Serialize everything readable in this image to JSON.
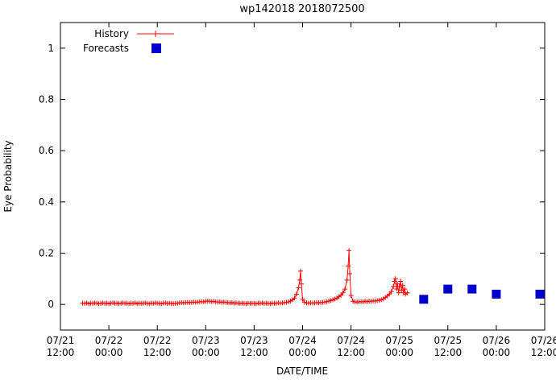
{
  "chart_data": {
    "type": "line",
    "title": "wp142018 2018072500",
    "xlabel": "DATE/TIME",
    "ylabel": "Eye Probability",
    "x_unit": "hours since 07/21 12:00",
    "xlim": [
      0,
      120
    ],
    "ylim": [
      -0.1,
      1.1
    ],
    "grid": false,
    "frame_color": "#000000",
    "x_ticks": [
      {
        "t": 0,
        "date": "07/21",
        "time": "12:00"
      },
      {
        "t": 12,
        "date": "07/22",
        "time": "00:00"
      },
      {
        "t": 24,
        "date": "07/22",
        "time": "12:00"
      },
      {
        "t": 36,
        "date": "07/23",
        "time": "00:00"
      },
      {
        "t": 48,
        "date": "07/23",
        "time": "12:00"
      },
      {
        "t": 60,
        "date": "07/24",
        "time": "00:00"
      },
      {
        "t": 72,
        "date": "07/24",
        "time": "12:00"
      },
      {
        "t": 84,
        "date": "07/25",
        "time": "00:00"
      },
      {
        "t": 96,
        "date": "07/25",
        "time": "12:00"
      },
      {
        "t": 108,
        "date": "07/26",
        "time": "00:00"
      },
      {
        "t": 120,
        "date": "07/26",
        "time": "12:00"
      }
    ],
    "y_ticks": [
      {
        "v": 0,
        "label": "0"
      },
      {
        "v": 0.2,
        "label": "0.2"
      },
      {
        "v": 0.4,
        "label": "0.4"
      },
      {
        "v": 0.6,
        "label": "0.6"
      },
      {
        "v": 0.8,
        "label": "0.8"
      },
      {
        "v": 1,
        "label": "1"
      }
    ],
    "legend": {
      "position": "top-left",
      "entries": [
        {
          "label": "History",
          "type": "line-plus",
          "color": "#ff0000"
        },
        {
          "label": "Forecasts",
          "type": "square",
          "color": "#0000cc"
        }
      ]
    },
    "series": [
      {
        "name": "History",
        "style": "linespoints",
        "marker": "plus",
        "color": "#ff0000",
        "points": [
          [
            5.5,
            0.005
          ],
          [
            6,
            0.004
          ],
          [
            6.5,
            0.006
          ],
          [
            7,
            0.003
          ],
          [
            7.5,
            0.005
          ],
          [
            8,
            0.004
          ],
          [
            8.5,
            0.006
          ],
          [
            9,
            0.005
          ],
          [
            9.5,
            0.003
          ],
          [
            10,
            0.004
          ],
          [
            10.5,
            0.006
          ],
          [
            11,
            0.004
          ],
          [
            11.5,
            0.005
          ],
          [
            12,
            0.003
          ],
          [
            12.5,
            0.005
          ],
          [
            13,
            0.006
          ],
          [
            13.5,
            0.004
          ],
          [
            14,
            0.005
          ],
          [
            14.5,
            0.003
          ],
          [
            15,
            0.004
          ],
          [
            15.5,
            0.006
          ],
          [
            16,
            0.005
          ],
          [
            16.5,
            0.004
          ],
          [
            17,
            0.003
          ],
          [
            17.5,
            0.005
          ],
          [
            18,
            0.004
          ],
          [
            18.5,
            0.006
          ],
          [
            19,
            0.003
          ],
          [
            19.5,
            0.005
          ],
          [
            20,
            0.004
          ],
          [
            20.5,
            0.005
          ],
          [
            21,
            0.006
          ],
          [
            21.5,
            0.004
          ],
          [
            22,
            0.003
          ],
          [
            22.5,
            0.005
          ],
          [
            23,
            0.004
          ],
          [
            23.5,
            0.006
          ],
          [
            24,
            0.005
          ],
          [
            24.5,
            0.004
          ],
          [
            25,
            0.003
          ],
          [
            25.5,
            0.005
          ],
          [
            26,
            0.006
          ],
          [
            26.5,
            0.004
          ],
          [
            27,
            0.005
          ],
          [
            27.5,
            0.004
          ],
          [
            28,
            0.003
          ],
          [
            28.5,
            0.004
          ],
          [
            29,
            0.005
          ],
          [
            29.5,
            0.006
          ],
          [
            30,
            0.007
          ],
          [
            30.5,
            0.006
          ],
          [
            31,
            0.007
          ],
          [
            31.5,
            0.008
          ],
          [
            32,
            0.007
          ],
          [
            32.5,
            0.008
          ],
          [
            33,
            0.009
          ],
          [
            33.5,
            0.008
          ],
          [
            34,
            0.009
          ],
          [
            34.5,
            0.01
          ],
          [
            35,
            0.011
          ],
          [
            35.5,
            0.01
          ],
          [
            36,
            0.012
          ],
          [
            36.5,
            0.013
          ],
          [
            37,
            0.012
          ],
          [
            37.5,
            0.011
          ],
          [
            38,
            0.012
          ],
          [
            38.5,
            0.01
          ],
          [
            39,
            0.009
          ],
          [
            39.5,
            0.01
          ],
          [
            40,
            0.008
          ],
          [
            40.5,
            0.009
          ],
          [
            41,
            0.008
          ],
          [
            41.5,
            0.007
          ],
          [
            42,
            0.006
          ],
          [
            42.5,
            0.007
          ],
          [
            43,
            0.005
          ],
          [
            43.5,
            0.006
          ],
          [
            44,
            0.005
          ],
          [
            44.5,
            0.004
          ],
          [
            45,
            0.005
          ],
          [
            45.5,
            0.004
          ],
          [
            46,
            0.003
          ],
          [
            46.5,
            0.005
          ],
          [
            47,
            0.004
          ],
          [
            47.5,
            0.005
          ],
          [
            48,
            0.004
          ],
          [
            48.5,
            0.003
          ],
          [
            49,
            0.005
          ],
          [
            49.5,
            0.004
          ],
          [
            50,
            0.006
          ],
          [
            50.5,
            0.004
          ],
          [
            51,
            0.005
          ],
          [
            51.5,
            0.004
          ],
          [
            52,
            0.003
          ],
          [
            52.5,
            0.005
          ],
          [
            53,
            0.004
          ],
          [
            53.5,
            0.005
          ],
          [
            54,
            0.006
          ],
          [
            54.5,
            0.005
          ],
          [
            55,
            0.006
          ],
          [
            55.5,
            0.007
          ],
          [
            56,
            0.008
          ],
          [
            56.5,
            0.01
          ],
          [
            57,
            0.013
          ],
          [
            57.5,
            0.018
          ],
          [
            58,
            0.025
          ],
          [
            58.5,
            0.04
          ],
          [
            59,
            0.065
          ],
          [
            59.3,
            0.095
          ],
          [
            59.5,
            0.13
          ],
          [
            59.7,
            0.08
          ],
          [
            60,
            0.02
          ],
          [
            60.5,
            0.008
          ],
          [
            61,
            0.006
          ],
          [
            61.5,
            0.005
          ],
          [
            62,
            0.006
          ],
          [
            62.5,
            0.005
          ],
          [
            63,
            0.006
          ],
          [
            63.5,
            0.007
          ],
          [
            64,
            0.006
          ],
          [
            64.5,
            0.007
          ],
          [
            65,
            0.008
          ],
          [
            65.5,
            0.009
          ],
          [
            66,
            0.011
          ],
          [
            66.5,
            0.013
          ],
          [
            67,
            0.015
          ],
          [
            67.5,
            0.018
          ],
          [
            68,
            0.021
          ],
          [
            68.5,
            0.025
          ],
          [
            69,
            0.03
          ],
          [
            69.5,
            0.036
          ],
          [
            70,
            0.045
          ],
          [
            70.5,
            0.06
          ],
          [
            71,
            0.095
          ],
          [
            71.3,
            0.15
          ],
          [
            71.5,
            0.21
          ],
          [
            71.7,
            0.12
          ],
          [
            72,
            0.035
          ],
          [
            72.5,
            0.012
          ],
          [
            73,
            0.01
          ],
          [
            73.5,
            0.009
          ],
          [
            74,
            0.01
          ],
          [
            74.5,
            0.011
          ],
          [
            75,
            0.01
          ],
          [
            75.5,
            0.012
          ],
          [
            76,
            0.011
          ],
          [
            76.5,
            0.013
          ],
          [
            77,
            0.012
          ],
          [
            77.5,
            0.014
          ],
          [
            78,
            0.013
          ],
          [
            78.5,
            0.015
          ],
          [
            79,
            0.016
          ],
          [
            79.5,
            0.018
          ],
          [
            80,
            0.022
          ],
          [
            80.5,
            0.027
          ],
          [
            81,
            0.033
          ],
          [
            81.5,
            0.04
          ],
          [
            82,
            0.05
          ],
          [
            82.5,
            0.07
          ],
          [
            82.8,
            0.09
          ],
          [
            83,
            0.1
          ],
          [
            83.3,
            0.06
          ],
          [
            83.5,
            0.08
          ],
          [
            83.8,
            0.045
          ],
          [
            84,
            0.07
          ],
          [
            84.3,
            0.09
          ],
          [
            84.5,
            0.055
          ],
          [
            84.8,
            0.075
          ],
          [
            85,
            0.045
          ],
          [
            85.3,
            0.06
          ],
          [
            85.5,
            0.04
          ],
          [
            86,
            0.045
          ]
        ]
      },
      {
        "name": "Forecasts",
        "style": "points",
        "marker": "square",
        "color": "#0000cc",
        "points": [
          [
            90,
            0.02
          ],
          [
            96,
            0.06
          ],
          [
            102,
            0.06
          ],
          [
            108,
            0.04
          ],
          [
            120,
            0.04
          ]
        ]
      }
    ]
  }
}
